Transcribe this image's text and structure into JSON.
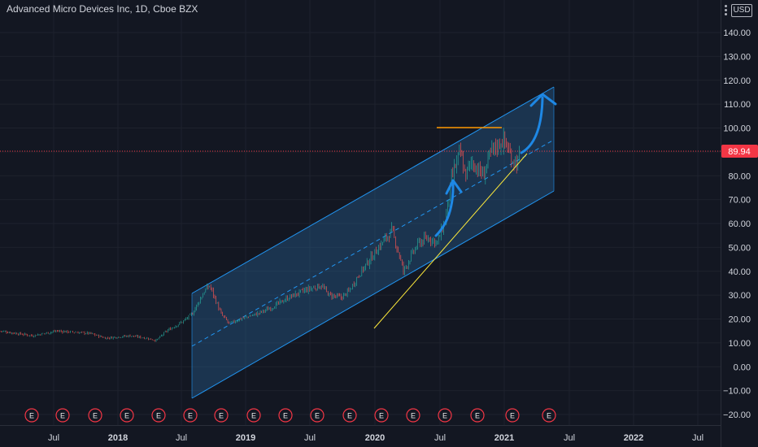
{
  "header": {
    "title": "Advanced Micro Devices Inc, 1D, Cboe BZX",
    "currency": "USD"
  },
  "price_axis": {
    "labels": [
      "140.00",
      "130.00",
      "120.00",
      "110.00",
      "100.00",
      "90.00",
      "80.00",
      "70.00",
      "60.00",
      "50.00",
      "40.00",
      "30.00",
      "20.00",
      "10.00",
      "0.00",
      "−10.00",
      "−20.00"
    ],
    "current_price": "89.94"
  },
  "time_axis": {
    "labels": [
      {
        "text": "Jul",
        "strong": false
      },
      {
        "text": "2018",
        "strong": true
      },
      {
        "text": "Jul",
        "strong": false
      },
      {
        "text": "2019",
        "strong": true
      },
      {
        "text": "Jul",
        "strong": false
      },
      {
        "text": "2020",
        "strong": true
      },
      {
        "text": "Jul",
        "strong": false
      },
      {
        "text": "2021",
        "strong": true
      },
      {
        "text": "Jul",
        "strong": false
      },
      {
        "text": "2022",
        "strong": true
      },
      {
        "text": "Jul",
        "strong": false
      }
    ]
  },
  "earnings": {
    "marker_label": "E",
    "count": 17
  },
  "colors": {
    "background": "#131722",
    "grid": "#1e222d",
    "channel_line": "#2196f3",
    "channel_fill": "#1f4f7a",
    "trend_line": "#ffeb3b",
    "resistance_line": "#ff9800",
    "arrow": "#1e88e5",
    "price_line": "#f23645",
    "candle_up": "#26a69a",
    "candle_down": "#ef5350",
    "earnings": "#f23645"
  },
  "icons": {
    "menu": "three-dots-icon",
    "arrows": "curved-arrow-icon"
  }
}
